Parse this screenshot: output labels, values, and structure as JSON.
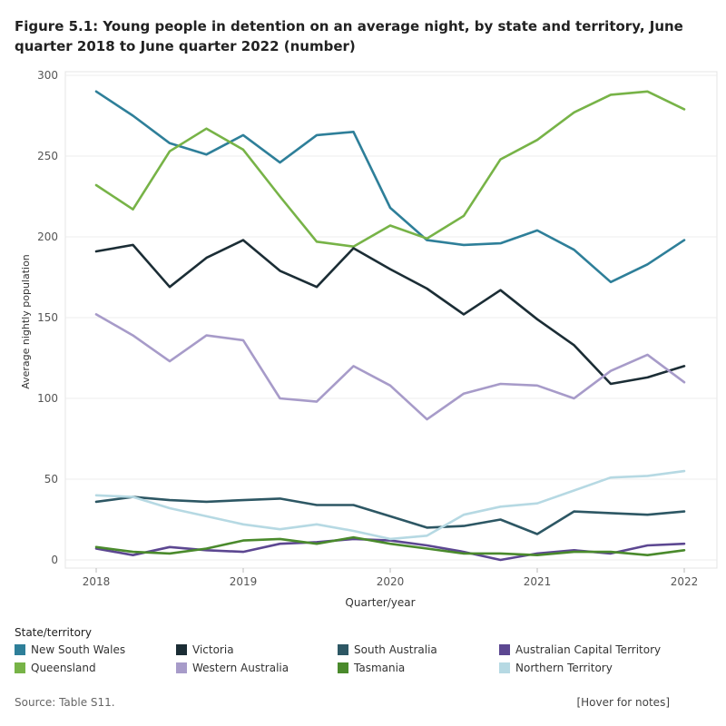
{
  "title": "Figure 5.1: Young people in detention on an average night, by state and territory, June quarter 2018 to June quarter 2022 (number)",
  "source": "Source: Table S11.",
  "notes_link": "[Hover for notes]",
  "legend_title": "State/territory",
  "chart_data": {
    "type": "line",
    "title": "Figure 5.1: Young people in detention on an average night, by state and territory, June quarter 2018 to June quarter 2022 (number)",
    "xlabel": "Quarter/year",
    "ylabel": "Average nightly population",
    "xlim": [
      2018,
      2022
    ],
    "ylim": [
      0,
      300
    ],
    "x_ticks": [
      "2018",
      "2019",
      "2020",
      "2021",
      "2022"
    ],
    "y_ticks": [
      "0",
      "50",
      "100",
      "150",
      "200",
      "250",
      "300"
    ],
    "grid": true,
    "legend_position": "bottom",
    "x": [
      2018.0,
      2018.25,
      2018.5,
      2018.75,
      2019.0,
      2019.25,
      2019.5,
      2019.75,
      2020.0,
      2020.25,
      2020.5,
      2020.75,
      2021.0,
      2021.25,
      2021.5,
      2021.75,
      2022.0
    ],
    "series": [
      {
        "name": "New South Wales",
        "color": "#2e7f99",
        "values": [
          290,
          275,
          258,
          251,
          263,
          246,
          263,
          265,
          218,
          198,
          195,
          196,
          204,
          192,
          172,
          183,
          198
        ]
      },
      {
        "name": "Queensland",
        "color": "#77b347",
        "values": [
          232,
          217,
          253,
          267,
          254,
          225,
          197,
          194,
          207,
          199,
          213,
          248,
          260,
          277,
          288,
          290,
          279
        ]
      },
      {
        "name": "Victoria",
        "color": "#1b2d35",
        "values": [
          191,
          195,
          169,
          187,
          198,
          179,
          169,
          193,
          180,
          168,
          152,
          167,
          149,
          133,
          109,
          113,
          120
        ]
      },
      {
        "name": "Western Australia",
        "color": "#a79bc9",
        "values": [
          152,
          139,
          123,
          139,
          136,
          100,
          98,
          120,
          108,
          87,
          103,
          109,
          108,
          100,
          117,
          127,
          110
        ]
      },
      {
        "name": "South Australia",
        "color": "#2d5764",
        "values": [
          36,
          39,
          37,
          36,
          37,
          38,
          34,
          34,
          27,
          20,
          21,
          25,
          16,
          30,
          29,
          28,
          30
        ]
      },
      {
        "name": "Australian Capital Territory",
        "color": "#5c4791",
        "values": [
          7,
          3,
          8,
          6,
          5,
          10,
          11,
          13,
          12,
          9,
          5,
          0,
          4,
          6,
          4,
          9,
          10
        ]
      },
      {
        "name": "Tasmania",
        "color": "#4a8a2c",
        "values": [
          8,
          5,
          4,
          7,
          12,
          13,
          10,
          14,
          10,
          7,
          4,
          4,
          3,
          5,
          5,
          3,
          6
        ]
      },
      {
        "name": "Northern Territory",
        "color": "#b6d9e3",
        "values": [
          40,
          39,
          32,
          27,
          22,
          19,
          22,
          18,
          13,
          15,
          28,
          33,
          35,
          43,
          51,
          52,
          55
        ]
      }
    ]
  },
  "legend_order": [
    "New South Wales",
    "Victoria",
    "South Australia",
    "Australian Capital Territory",
    "Queensland",
    "Western Australia",
    "Tasmania",
    "Northern Territory"
  ]
}
